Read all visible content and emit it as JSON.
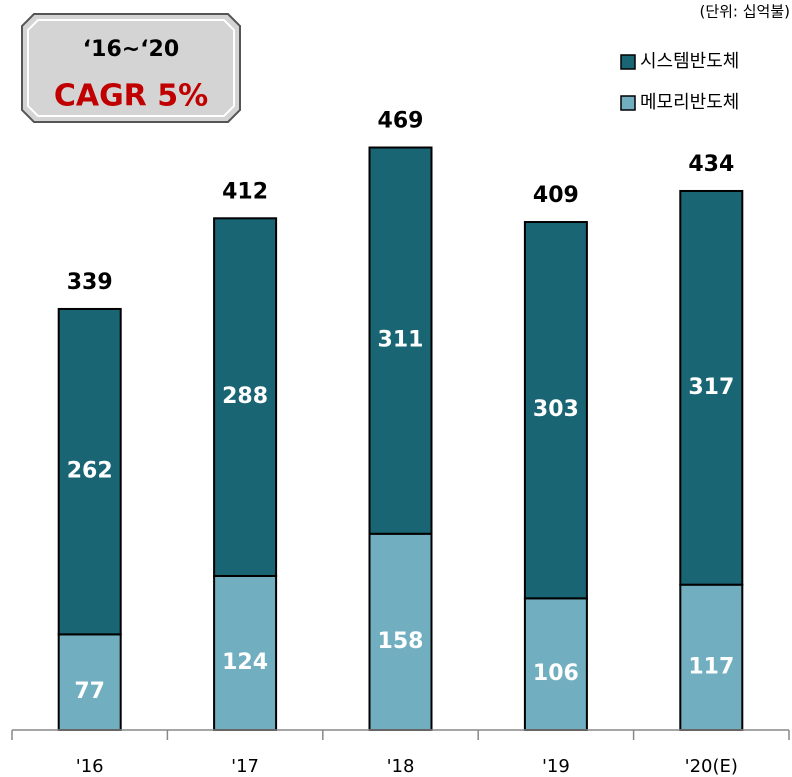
{
  "chart_data": {
    "type": "stacked_bar",
    "unit_note": "(단위: 십억불)",
    "annotation": {
      "period": "‘16~‘20",
      "text": "CAGR 5%"
    },
    "categories": [
      "'16",
      "'17",
      "'18",
      "'19",
      "'20(E)"
    ],
    "series": [
      {
        "name": "시스템반도체",
        "color": "#196574",
        "values": [
          262,
          288,
          311,
          303,
          317
        ]
      },
      {
        "name": "메모리반도체",
        "color": "#70aec0",
        "values": [
          77,
          124,
          158,
          106,
          117
        ]
      }
    ],
    "totals": [
      339,
      412,
      469,
      409,
      434
    ]
  }
}
